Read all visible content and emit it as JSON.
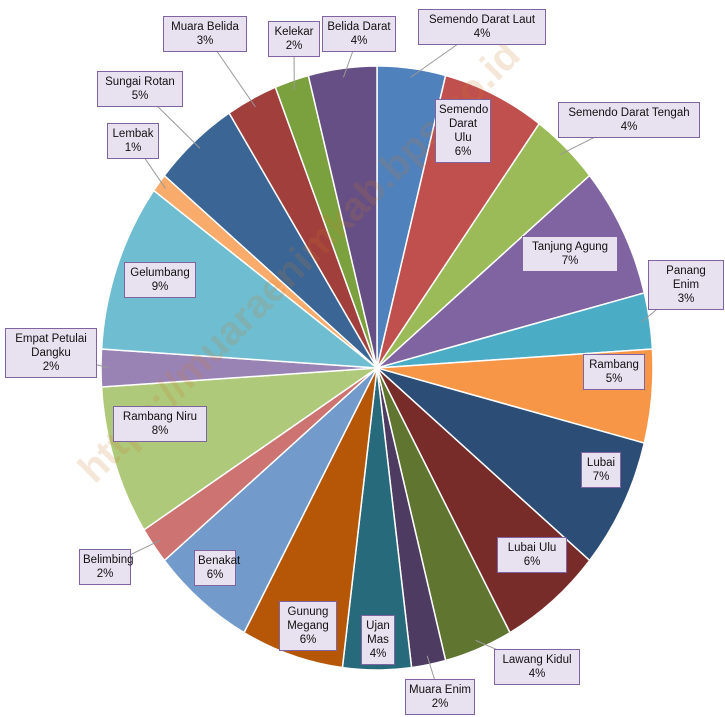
{
  "chart_data": {
    "type": "pie",
    "categories": [
      "Semendo Darat Laut",
      "Semendo Darat Ulu",
      "Semendo Darat Tengah",
      "Tanjung Agung",
      "Panang Enim",
      "Rambang",
      "Lubai",
      "Lubai Ulu",
      "Lawang Kidul",
      "Muara Enim",
      "Ujan Mas",
      "Gunung Megang",
      "Benakat",
      "Belimbing",
      "Rambang Niru",
      "Empat Petulai Dangku",
      "Gelumbang",
      "Lembak",
      "Sungai Rotan",
      "Muara Belida",
      "Kelekar",
      "Belida Darat"
    ],
    "values": [
      4,
      6,
      4,
      7,
      3,
      5,
      7,
      6,
      4,
      2,
      4,
      6,
      6,
      2,
      8,
      2,
      9,
      1,
      5,
      3,
      2,
      4
    ],
    "value_labels": [
      "4%",
      "6%",
      "4%",
      "7%",
      "3%",
      "5%",
      "7%",
      "6%",
      "4%",
      "2%",
      "4%",
      "6%",
      "6%",
      "2%",
      "8%",
      "2%",
      "9%",
      "1%",
      "5%",
      "3%",
      "2%",
      "4%"
    ],
    "colors": [
      "#4f81bd",
      "#c0504d",
      "#9bbb59",
      "#8064a2",
      "#4bacc6",
      "#f79646",
      "#2c4d75",
      "#772c2a",
      "#5f7530",
      "#4d3b62",
      "#276a7c",
      "#b65708",
      "#729aca",
      "#cd7371",
      "#afc97a",
      "#9983b5",
      "#6fbdd1",
      "#f9ab6b",
      "#3a6595",
      "#a03f3c",
      "#7aa13d",
      "#664f84"
    ],
    "watermark": "https://muaraenimkab.bps.go.id"
  }
}
